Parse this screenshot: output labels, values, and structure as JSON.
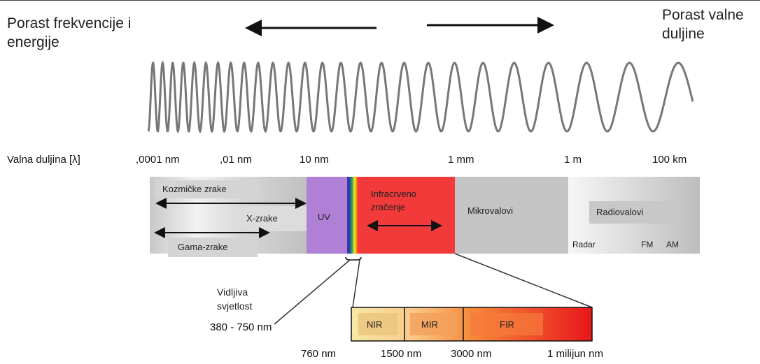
{
  "header": {
    "left_line1": "Porast frekvencije i",
    "left_line2": "energije",
    "right_line1": "Porast valne",
    "right_line2": "duljine"
  },
  "scale": {
    "label": "Valna duljina [λ]",
    "ticks": [
      ",0001 nm",
      ",01 nm",
      "10 nm",
      "1 mm",
      "1 m",
      "100 km"
    ]
  },
  "bands": {
    "cosmic": "Kozmičke zrake",
    "xray": "X-zrake",
    "gamma": "Gama-zrake",
    "uv": "UV",
    "infrared_line1": "Infracrveno",
    "infrared_line2": "zračenje",
    "microwave": "Mikrovalovi",
    "radio": "Radiovalovi",
    "radar": "Radar",
    "fm": "FM",
    "am": "AM"
  },
  "visible": {
    "line1": "Vidljiva",
    "line2": "svjetlost",
    "range": "380 - 750 nm"
  },
  "infrared_detail": {
    "nir": "NIR",
    "mir": "MIR",
    "fir": "FIR",
    "ticks": [
      "760 nm",
      "1500 nm",
      "3000 nm",
      "1 milijun nm"
    ]
  },
  "colors": {
    "uv": "#b07fd6",
    "infrared": "#f23a3a",
    "microwave": "#c4c4c4",
    "radio": "#d6d6d6"
  }
}
